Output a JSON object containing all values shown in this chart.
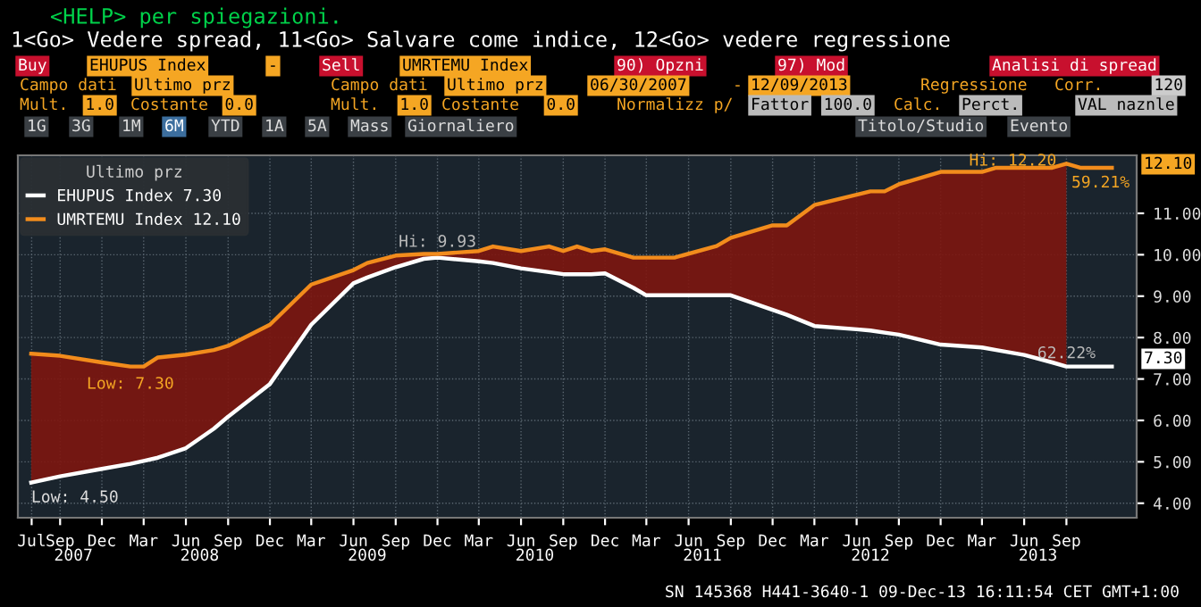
{
  "chart_data": {
    "type": "line",
    "title": "<HELP> per spiegazioni.",
    "subtitle": "1<Go> Vedere spread, 11<Go> Salvare come indice, 12<Go> vedere regressione",
    "legend_title": "Ultimo prz",
    "x": [
      "2007-06-30",
      "2007-09",
      "2007-12",
      "2008-02",
      "2008-03",
      "2008-04",
      "2008-06",
      "2008-08",
      "2008-09",
      "2008-12",
      "2009-03",
      "2009-06",
      "2009-07",
      "2009-09",
      "2009-11",
      "2009-12",
      "2010-03",
      "2010-04",
      "2010-06",
      "2010-08",
      "2010-09",
      "2010-10",
      "2010-11",
      "2010-12",
      "2011-02",
      "2011-03",
      "2011-05",
      "2011-08",
      "2011-09",
      "2011-12",
      "2012-01",
      "2012-03",
      "2012-06",
      "2012-07",
      "2012-08",
      "2012-09",
      "2012-12",
      "2013-03",
      "2013-04",
      "2013-06",
      "2013-08",
      "2013-09",
      "2013-10",
      "2013-12-09"
    ],
    "series": [
      {
        "name": "EHUPUS Index 7.30",
        "color": "#ffffff",
        "values": [
          4.5,
          4.65,
          4.83,
          4.95,
          5.02,
          5.1,
          5.33,
          5.8,
          6.09,
          6.88,
          8.31,
          9.31,
          9.45,
          9.7,
          9.9,
          9.93,
          9.84,
          9.8,
          9.67,
          9.58,
          9.53,
          9.53,
          9.53,
          9.55,
          9.2,
          9.02,
          9.02,
          9.02,
          9.02,
          8.67,
          8.55,
          8.28,
          8.2,
          8.17,
          8.12,
          8.07,
          7.83,
          7.76,
          7.7,
          7.58,
          7.4,
          7.3,
          7.3,
          7.3
        ]
      },
      {
        "name": "UMRTEMU Index 12.10",
        "color": "#f28c1c",
        "values": [
          7.61,
          7.56,
          7.4,
          7.3,
          7.3,
          7.52,
          7.59,
          7.7,
          7.8,
          8.31,
          9.28,
          9.63,
          9.8,
          9.98,
          10.02,
          10.02,
          10.09,
          10.2,
          10.09,
          10.2,
          10.09,
          10.2,
          10.09,
          10.13,
          9.93,
          9.93,
          9.93,
          10.21,
          10.41,
          10.71,
          10.71,
          11.2,
          11.45,
          11.53,
          11.53,
          11.7,
          12.0,
          12.0,
          12.1,
          12.1,
          12.1,
          12.2,
          12.1,
          12.1
        ],
        "lower": [
          4.5,
          4.65,
          4.83,
          4.95,
          5.02,
          5.1,
          5.33,
          5.8,
          6.09,
          6.88,
          8.31,
          9.31,
          9.45,
          9.7,
          9.9,
          9.93,
          9.84,
          9.8,
          9.67,
          9.58,
          9.53,
          9.53,
          9.53,
          9.55,
          9.2,
          9.02,
          9.02,
          9.02,
          9.02,
          8.67,
          8.55,
          8.28,
          8.2,
          8.17,
          8.12,
          8.07,
          7.83,
          7.76,
          7.7,
          7.58,
          7.4,
          7.3,
          null,
          null
        ],
        "upper": [
          7.61,
          7.56,
          7.4,
          7.3,
          7.3,
          7.52,
          7.59,
          7.7,
          7.8,
          8.31,
          9.28,
          9.63,
          9.8,
          9.98,
          10.02,
          10.02,
          10.09,
          10.2,
          10.09,
          10.2,
          10.09,
          10.2,
          10.09,
          10.13,
          9.93,
          9.93,
          9.93,
          10.21,
          10.41,
          10.71,
          10.71,
          11.2,
          11.45,
          11.53,
          11.53,
          11.7,
          12.0,
          12.0,
          12.1,
          12.1,
          12.1,
          12.2,
          null,
          null
        ]
      }
    ],
    "xlim": [
      "2007-06-01",
      "2014-02-01"
    ],
    "xticks": [
      {
        "value": "2007-07-01",
        "label": "Jul"
      },
      {
        "value": "2007-09-01",
        "label": "Sep"
      },
      {
        "value": "2007-12-01",
        "label": "Dec"
      },
      {
        "value": "2008-03-01",
        "label": "Mar"
      },
      {
        "value": "2008-06-01",
        "label": "Jun"
      },
      {
        "value": "2008-09-01",
        "label": "Sep"
      },
      {
        "value": "2008-12-01",
        "label": "Dec"
      },
      {
        "value": "2009-03-01",
        "label": "Mar"
      },
      {
        "value": "2009-06-01",
        "label": "Jun"
      },
      {
        "value": "2009-09-01",
        "label": "Sep"
      },
      {
        "value": "2009-12-01",
        "label": "Dec"
      },
      {
        "value": "2010-03-01",
        "label": "Mar"
      },
      {
        "value": "2010-06-01",
        "label": "Jun"
      },
      {
        "value": "2010-09-01",
        "label": "Sep"
      },
      {
        "value": "2010-12-01",
        "label": "Dec"
      },
      {
        "value": "2011-03-01",
        "label": "Mar"
      },
      {
        "value": "2011-06-01",
        "label": "Jun"
      },
      {
        "value": "2011-09-01",
        "label": "Sep"
      },
      {
        "value": "2011-12-01",
        "label": "Dec"
      },
      {
        "value": "2012-03-01",
        "label": "Mar"
      },
      {
        "value": "2012-06-01",
        "label": "Jun"
      },
      {
        "value": "2012-09-01",
        "label": "Sep"
      },
      {
        "value": "2012-12-01",
        "label": "Dec"
      },
      {
        "value": "2013-03-01",
        "label": "Mar"
      },
      {
        "value": "2013-06-01",
        "label": "Jun"
      },
      {
        "value": "2013-09-01",
        "label": "Sep"
      }
    ],
    "x2ticks": [
      {
        "value": "2007-09-30",
        "label": "2007"
      },
      {
        "value": "2008-07-01",
        "label": "2008"
      },
      {
        "value": "2009-07-01",
        "label": "2009"
      },
      {
        "value": "2010-07-01",
        "label": "2010"
      },
      {
        "value": "2011-07-01",
        "label": "2011"
      },
      {
        "value": "2012-07-01",
        "label": "2012"
      },
      {
        "value": "2013-07-01",
        "label": "2013"
      }
    ],
    "x2lim": [
      "2007-06-01",
      "2014-02-01"
    ],
    "ylim": [
      3.65,
      12.4
    ],
    "yticks": [
      {
        "value": 4,
        "label": "4.00"
      },
      {
        "value": 5,
        "label": "5.00"
      },
      {
        "value": 6,
        "label": "6.00"
      },
      {
        "value": 7,
        "label": "7.00"
      },
      {
        "value": 8,
        "label": "8.00"
      },
      {
        "value": 9,
        "label": "9.00"
      },
      {
        "value": 10,
        "label": "10.00"
      },
      {
        "value": 11,
        "label": "11.00"
      }
    ],
    "grid": true,
    "legend": "top left",
    "marker": "none",
    "line_style": "solid",
    "annotations": [
      "Buy",
      "EHUPUS Index",
      "-",
      "Sell",
      "UMRTEMU Index",
      "90) Opzni",
      "97) Mod",
      "Analisi di spread",
      "Campo dati",
      "Ultimo prz",
      "Campo dati",
      "Ultimo prz",
      "06/30/2007",
      "-",
      "12/09/2013",
      "Regressione",
      "Corr.",
      "120",
      "Mult.",
      "1.0",
      "Costante",
      "0.0",
      "Mult.",
      "1.0",
      "Costante",
      "0.0",
      "Normalizz p/",
      "Fattor",
      "100.0",
      "Calc.",
      "Perct.",
      "VAL naznle",
      "1G",
      "3G",
      "1M",
      "6M",
      "YTD",
      "1A",
      "5A",
      "Mass",
      "Giornaliero",
      "Titolo/Studio",
      "Evento",
      "SN 145368 H441-3640-1 09-Dec-13 16:11:54 CET GMT+1:00",
      "12.10",
      "7.30",
      {
        "text": "Low: 4.50",
        "x": "2007-06-30",
        "y": 4.5
      },
      {
        "text": "Low: 7.30",
        "x": "2008-02",
        "y": 7.3
      },
      {
        "text": "Hi: 9.93",
        "x": "2009-12",
        "y": 9.93
      },
      {
        "text": "Hi: 12.20",
        "x": "2013-09",
        "y": 12.2
      },
      {
        "text": "59.21%",
        "x": "2013-09",
        "y": 12.1
      },
      {
        "text": "62.22%",
        "x": "2013-09",
        "y": 7.3
      }
    ]
  }
}
